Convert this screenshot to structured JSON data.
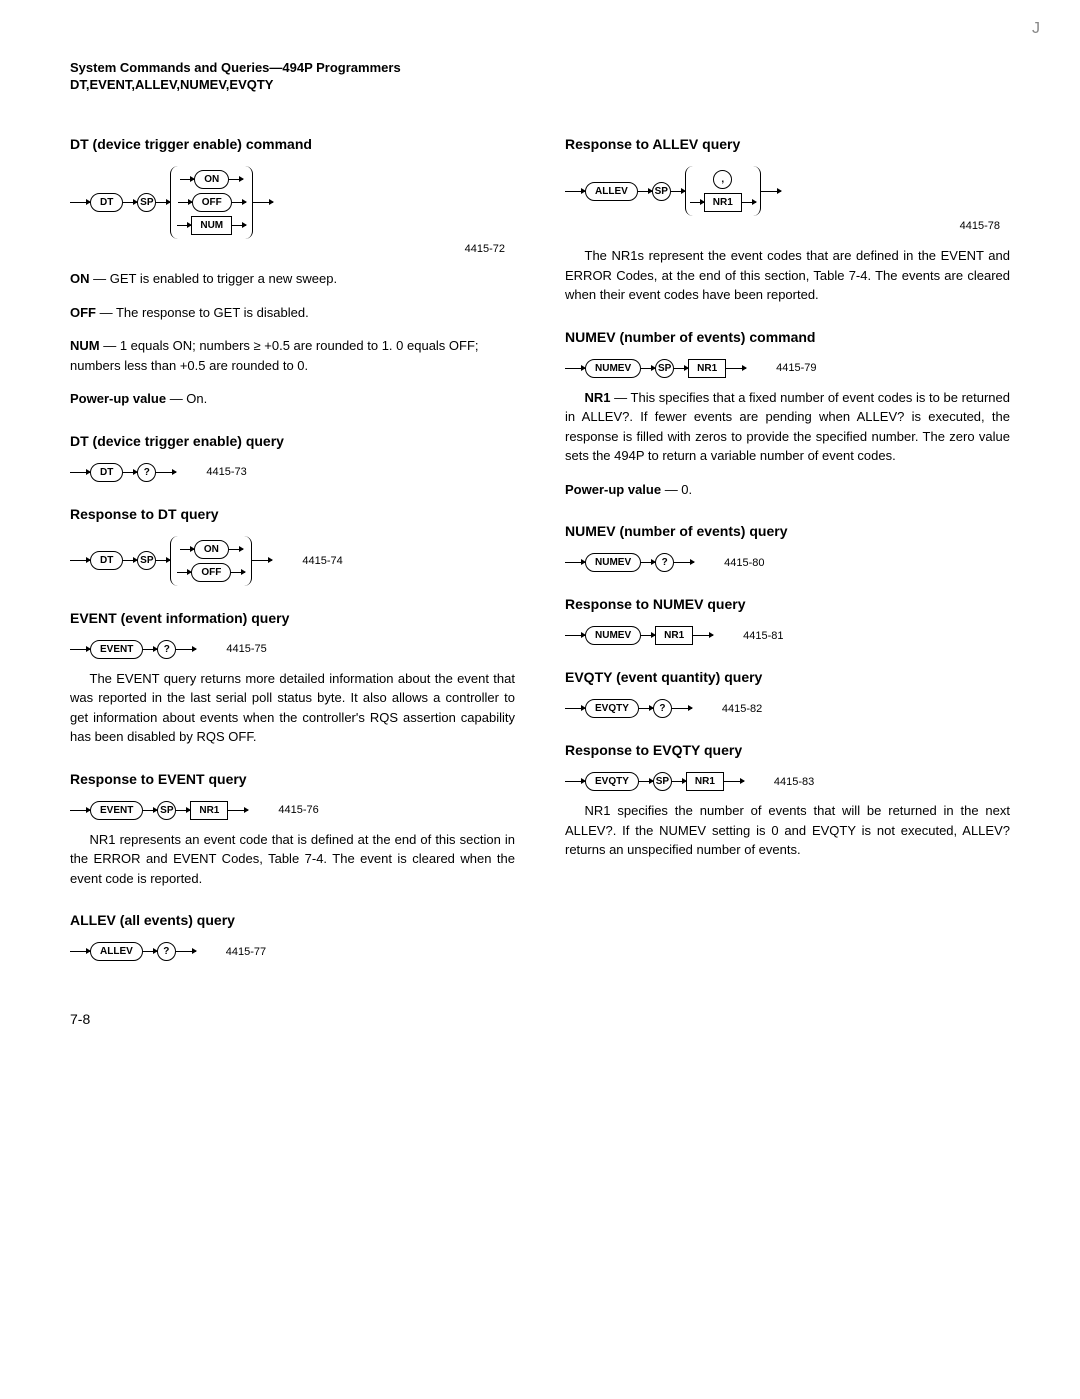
{
  "header": {
    "line1": "System Commands and Queries—494P Programmers",
    "line2": "DT,EVENT,ALLEV,NUMEV,EVQTY"
  },
  "left": {
    "s1_title": "DT (device trigger enable) command",
    "s1_fig": "4415-72",
    "d_on": "ON — GET is enabled to trigger a new sweep.",
    "d_off": "OFF — The response to GET is disabled.",
    "d_num": "NUM — 1 equals ON; numbers ≥ +0.5 are rounded to 1. 0 equals OFF; numbers less than +0.5 are rounded to 0.",
    "d_pu": "Power-up value — On.",
    "s2_title": "DT (device trigger enable) query",
    "s2_fig": "4415-73",
    "s3_title": "Response to DT query",
    "s3_fig": "4415-74",
    "s4_title": "EVENT (event information) query",
    "s4_fig": "4415-75",
    "s4_text": "The EVENT query returns more detailed information about the event that was reported in the last serial poll status byte. It also allows a controller to get information about events when the controller's RQS assertion capability has been disabled by RQS OFF.",
    "s5_title": "Response to EVENT query",
    "s5_fig": "4415-76",
    "s5_text": "NR1 represents an event code that is defined at the end of this section in the ERROR and EVENT Codes, Table 7-4. The event is cleared when the event code is reported.",
    "s6_title": "ALLEV (all events) query",
    "s6_fig": "4415-77"
  },
  "right": {
    "s1_title": "Response to ALLEV query",
    "s1_fig": "4415-78",
    "s1_text": "The NR1s represent the event codes that are defined in the EVENT and ERROR Codes, at the end of this section, Table 7-4. The events are cleared when their event codes have been reported.",
    "s2_title": "NUMEV (number of events) command",
    "s2_fig": "4415-79",
    "s2_text": "NR1 — This specifies that a fixed number of event codes is to be returned in ALLEV?. If fewer events are pending when ALLEV? is executed, the response is filled with zeros to provide the specified number. The zero value sets the 494P to return a variable number of event codes.",
    "s2_pu": "Power-up value — 0.",
    "s3_title": "NUMEV (number of events) query",
    "s3_fig": "4415-80",
    "s4_title": "Response to NUMEV query",
    "s4_fig": "4415-81",
    "s5_title": "EVQTY (event quantity) query",
    "s5_fig": "4415-82",
    "s6_title": "Response to EVQTY query",
    "s6_fig": "4415-83",
    "s6_text": "NR1 specifies the number of events that will be returned in the next ALLEV?. If the NUMEV setting is 0 and EVQTY is not executed, ALLEV? returns an unspecified number of events."
  },
  "tokens": {
    "DT": "DT",
    "SP": "SP",
    "ON": "ON",
    "OFF": "OFF",
    "NUM": "NUM",
    "Q": "?",
    "EVENT": "EVENT",
    "NR1": "NR1",
    "ALLEV": "ALLEV",
    "NUMEV": "NUMEV",
    "EVQTY": "EVQTY",
    "comma": ","
  },
  "pagenum": "7-8",
  "corner": "J"
}
